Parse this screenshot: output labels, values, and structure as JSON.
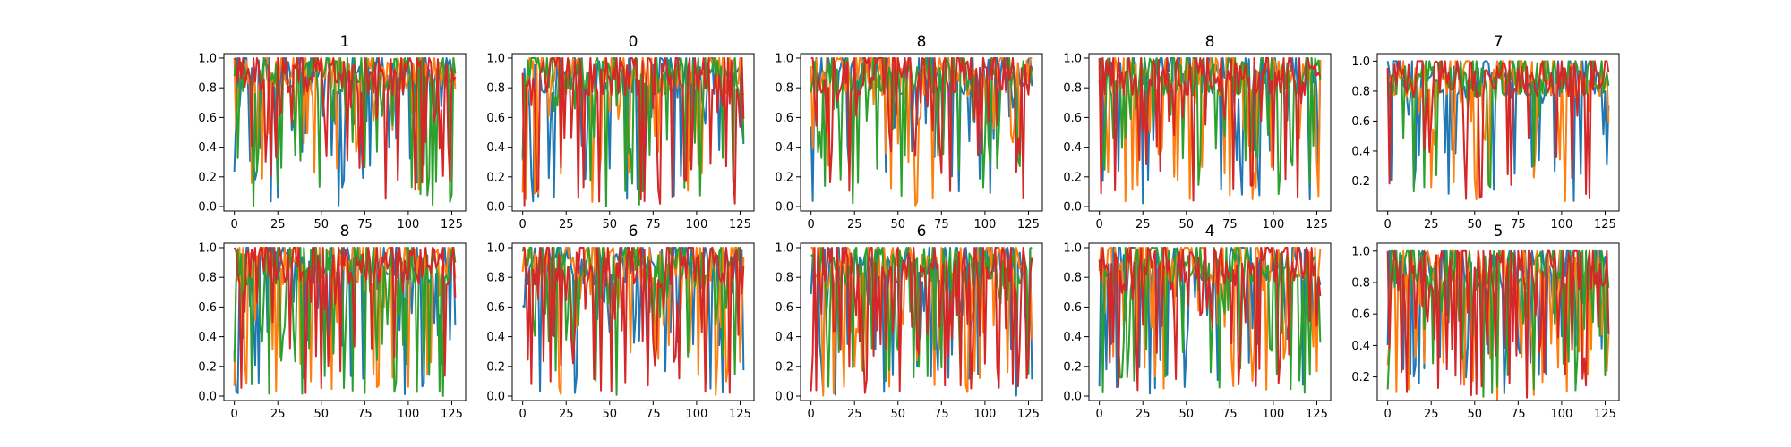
{
  "chart_data": {
    "type": "line",
    "layout": "grid 2 rows x 5 columns",
    "grid": false,
    "x_ticks": [
      0,
      25,
      50,
      75,
      100,
      125
    ],
    "n_points": 128,
    "series_colors": [
      "#1f77b4",
      "#ff7f0e",
      "#2ca02c",
      "#d62728"
    ],
    "panels": [
      {
        "title": "1",
        "xlim": [
          -6,
          133
        ],
        "ylim": [
          -0.03,
          1.03
        ],
        "y_ticks": [
          "0.0",
          "0.2",
          "0.4",
          "0.6",
          "0.8",
          "1.0"
        ],
        "seed": 11,
        "min_level": 0.0,
        "dip_rate": 0.25
      },
      {
        "title": "0",
        "xlim": [
          -6,
          133
        ],
        "ylim": [
          -0.03,
          1.03
        ],
        "y_ticks": [
          "0.0",
          "0.2",
          "0.4",
          "0.6",
          "0.8",
          "1.0"
        ],
        "seed": 23,
        "min_level": 0.0,
        "dip_rate": 0.28
      },
      {
        "title": "8",
        "xlim": [
          -6,
          133
        ],
        "ylim": [
          -0.03,
          1.03
        ],
        "y_ticks": [
          "0.0",
          "0.2",
          "0.4",
          "0.6",
          "0.8",
          "1.0"
        ],
        "seed": 37,
        "min_level": 0.0,
        "dip_rate": 0.28
      },
      {
        "title": "8",
        "xlim": [
          -6,
          133
        ],
        "ylim": [
          -0.03,
          1.03
        ],
        "y_ticks": [
          "0.0",
          "0.2",
          "0.4",
          "0.6",
          "0.8",
          "1.0"
        ],
        "seed": 41,
        "min_level": 0.0,
        "dip_rate": 0.3
      },
      {
        "title": "7",
        "xlim": [
          -6,
          133
        ],
        "ylim": [
          0.0,
          1.05
        ],
        "y_ticks": [
          "0.2",
          "0.4",
          "0.6",
          "0.8",
          "1.0"
        ],
        "seed": 53,
        "min_level": 0.05,
        "dip_rate": 0.2
      },
      {
        "title": "8",
        "xlim": [
          -6,
          133
        ],
        "ylim": [
          -0.03,
          1.03
        ],
        "y_ticks": [
          "0.0",
          "0.2",
          "0.4",
          "0.6",
          "0.8",
          "1.0"
        ],
        "seed": 67,
        "min_level": 0.0,
        "dip_rate": 0.32
      },
      {
        "title": "6",
        "xlim": [
          -6,
          133
        ],
        "ylim": [
          -0.03,
          1.03
        ],
        "y_ticks": [
          "0.0",
          "0.2",
          "0.4",
          "0.6",
          "0.8",
          "1.0"
        ],
        "seed": 71,
        "min_level": 0.0,
        "dip_rate": 0.32
      },
      {
        "title": "6",
        "xlim": [
          -6,
          133
        ],
        "ylim": [
          -0.03,
          1.03
        ],
        "y_ticks": [
          "0.0",
          "0.2",
          "0.4",
          "0.6",
          "0.8",
          "1.0"
        ],
        "seed": 83,
        "min_level": 0.0,
        "dip_rate": 0.38
      },
      {
        "title": "4",
        "xlim": [
          -6,
          133
        ],
        "ylim": [
          -0.03,
          1.03
        ],
        "y_ticks": [
          "0.0",
          "0.2",
          "0.4",
          "0.6",
          "0.8",
          "1.0"
        ],
        "seed": 97,
        "min_level": 0.0,
        "dip_rate": 0.38
      },
      {
        "title": "5",
        "xlim": [
          -6,
          133
        ],
        "ylim": [
          0.05,
          1.05
        ],
        "y_ticks": [
          "0.2",
          "0.4",
          "0.6",
          "0.8",
          "1.0"
        ],
        "seed": 101,
        "min_level": 0.05,
        "dip_rate": 0.38
      }
    ]
  }
}
